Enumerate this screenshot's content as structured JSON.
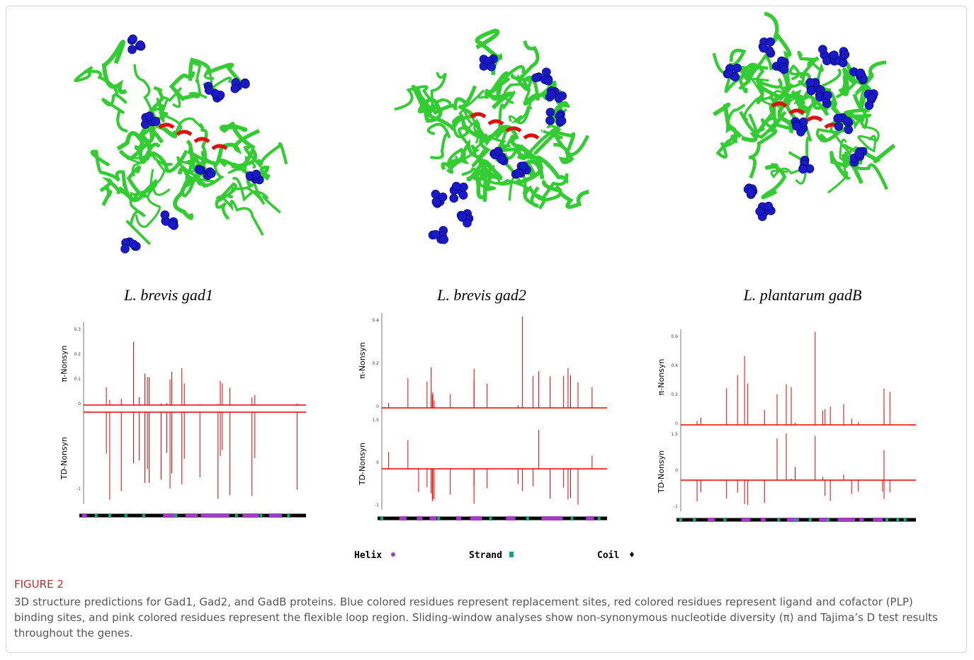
{
  "panels": [
    {
      "label": "L. brevis gad1",
      "pi_axis": "π-Nonsyn",
      "td_axis": "TD-Nonsyn",
      "pi_ticks": [
        "0.3",
        "0.2",
        "0.1",
        "0"
      ],
      "td_ticks": [
        "-1"
      ]
    },
    {
      "label": "L. brevis gad2",
      "pi_axis": "π-Nonsyn",
      "td_axis": "TD-Nonsyn",
      "pi_ticks": [
        "0.4",
        "0.2",
        "0"
      ],
      "td_ticks": [
        "1.5",
        "0",
        "-1"
      ]
    },
    {
      "label": "L. plantarum gadB",
      "pi_axis": "π-Nonsyn",
      "td_axis": "TD-Nonsyn",
      "pi_ticks": [
        "0.6",
        "0.4",
        "0.2",
        "0"
      ],
      "td_ticks": [
        "1.5",
        "0",
        "-1"
      ]
    }
  ],
  "legend": [
    "Helix",
    "Strand",
    "Coil"
  ],
  "figure": {
    "label": "FIGURE 2",
    "caption": "3D structure predictions for Gad1, Gad2, and GadB proteins. Blue colored residues represent replacement sites, red colored residues represent ligand and cofactor (PLP) binding sites, and pink colored residues represent the flexible loop region. Sliding-window analyses show non-synonymous nucleotide diversity (π) and Tajima’s D test results throughout the genes."
  }
}
